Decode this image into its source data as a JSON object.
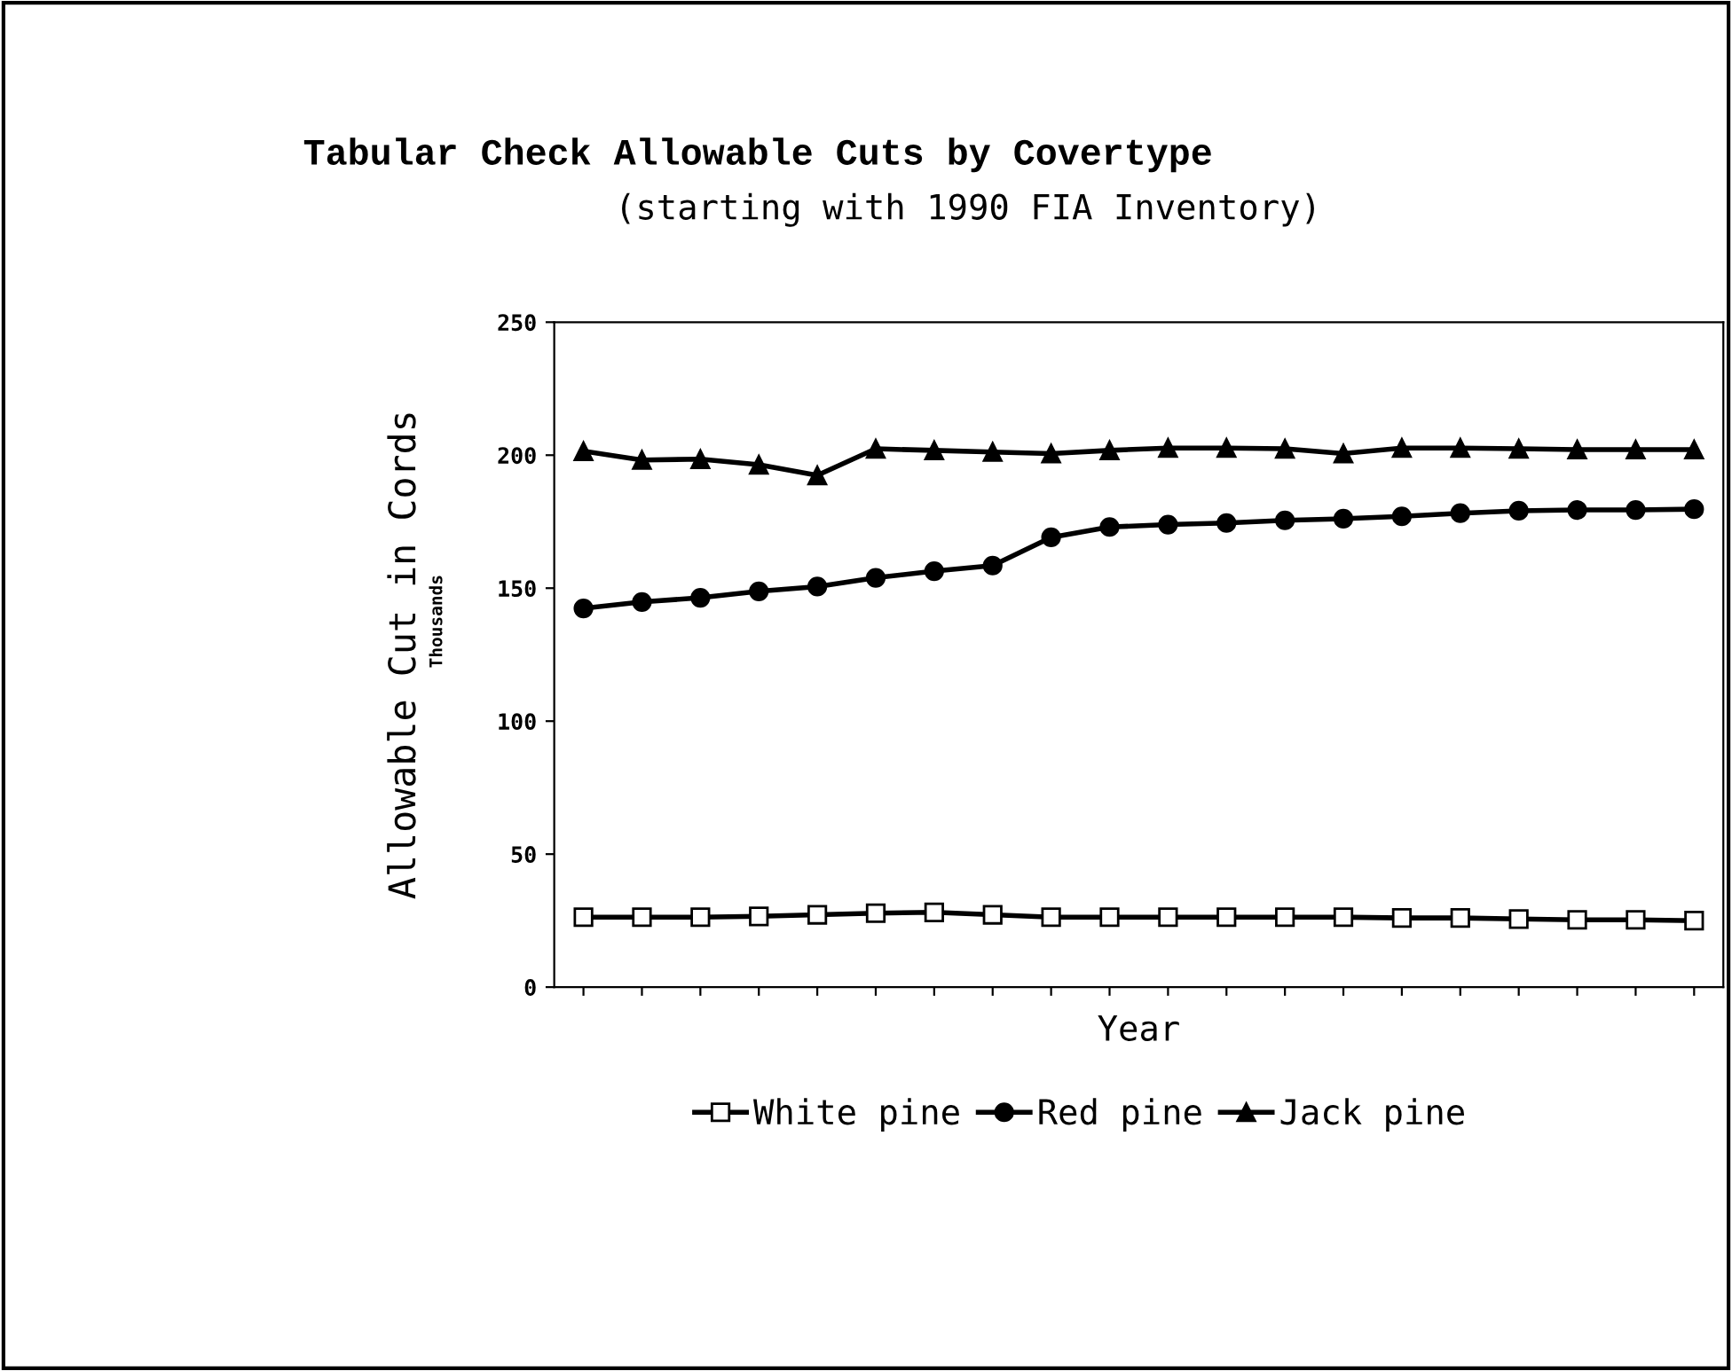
{
  "chart_data": {
    "type": "line",
    "title": "Tabular Check Allowable Cuts by Covertype",
    "subtitle": "(starting with 1990 FIA Inventory)",
    "xlabel": "Year",
    "ylabel": "Allowable Cut in Cords",
    "annotations": [
      "Thousands"
    ],
    "categories": [
      null,
      null,
      null,
      null,
      null,
      null,
      null,
      null,
      null,
      null,
      null,
      null,
      null,
      null,
      null,
      null,
      null,
      null,
      null,
      null
    ],
    "ylim": [
      0,
      250
    ],
    "yticks": [
      0,
      50,
      100,
      150,
      200,
      250
    ],
    "grid": false,
    "legend": "bottom",
    "line_style": "solid",
    "series": [
      {
        "name": "White pine",
        "color": "#000000",
        "marker": "square",
        "values": [
          26.3,
          26.3,
          26.3,
          26.6,
          27.2,
          27.8,
          28.1,
          27.2,
          26.3,
          26.3,
          26.3,
          26.3,
          26.3,
          26.3,
          26.0,
          26.0,
          25.6,
          25.3,
          25.3,
          25.0
        ]
      },
      {
        "name": "Red pine",
        "color": "#000000",
        "marker": "circle",
        "values": [
          142.4,
          144.8,
          146.4,
          148.8,
          150.6,
          153.9,
          156.4,
          158.5,
          169.1,
          173.0,
          173.9,
          174.5,
          175.5,
          176.1,
          177.0,
          178.2,
          179.1,
          179.4,
          179.4,
          179.7
        ]
      },
      {
        "name": "Jack pine",
        "color": "#000000",
        "marker": "triangle",
        "values": [
          201.5,
          198.2,
          198.5,
          196.4,
          192.4,
          202.4,
          201.8,
          201.2,
          200.6,
          201.8,
          202.7,
          202.7,
          202.4,
          200.6,
          202.7,
          202.7,
          202.4,
          202.1,
          202.1,
          202.1
        ]
      }
    ]
  }
}
